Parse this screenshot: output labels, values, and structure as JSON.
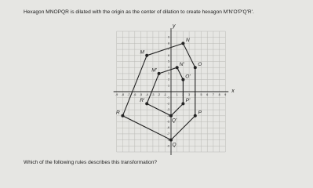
{
  "question": "Hexagon MNOPQR is dilated with the origin as the center of dilation to create hexagon M'N'O'P'Q'R'.",
  "graph": {
    "x_label": "x",
    "y_label": "y",
    "xlim": [
      -9,
      9
    ],
    "ylim": [
      -10,
      10
    ],
    "xticks": [
      -9,
      -8,
      -7,
      -6,
      -5,
      -4,
      -3,
      -2,
      -1,
      1,
      2,
      3,
      4,
      5,
      6,
      7,
      8,
      9
    ],
    "yticks": [
      -9,
      -8,
      -7,
      -6,
      -5,
      -4,
      -3,
      -2,
      -1,
      1,
      2,
      3,
      4,
      5,
      6,
      7,
      8,
      9
    ],
    "hexagon": [
      {
        "label": "M",
        "x": -4,
        "y": 6
      },
      {
        "label": "N",
        "x": 2,
        "y": 8
      },
      {
        "label": "O",
        "x": 4,
        "y": 4
      },
      {
        "label": "P",
        "x": 4,
        "y": -4
      },
      {
        "label": "Q",
        "x": 0,
        "y": -8
      },
      {
        "label": "R",
        "x": -8,
        "y": -4
      }
    ],
    "image": [
      {
        "label": "M'",
        "x": -2,
        "y": 3
      },
      {
        "label": "N'",
        "x": 1,
        "y": 4
      },
      {
        "label": "O'",
        "x": 2,
        "y": 2
      },
      {
        "label": "P'",
        "x": 2,
        "y": -2
      },
      {
        "label": "Q'",
        "x": 0,
        "y": -4
      },
      {
        "label": "R'",
        "x": -4,
        "y": -2
      }
    ]
  },
  "prompt": "Which of the following rules describes this transformation?"
}
